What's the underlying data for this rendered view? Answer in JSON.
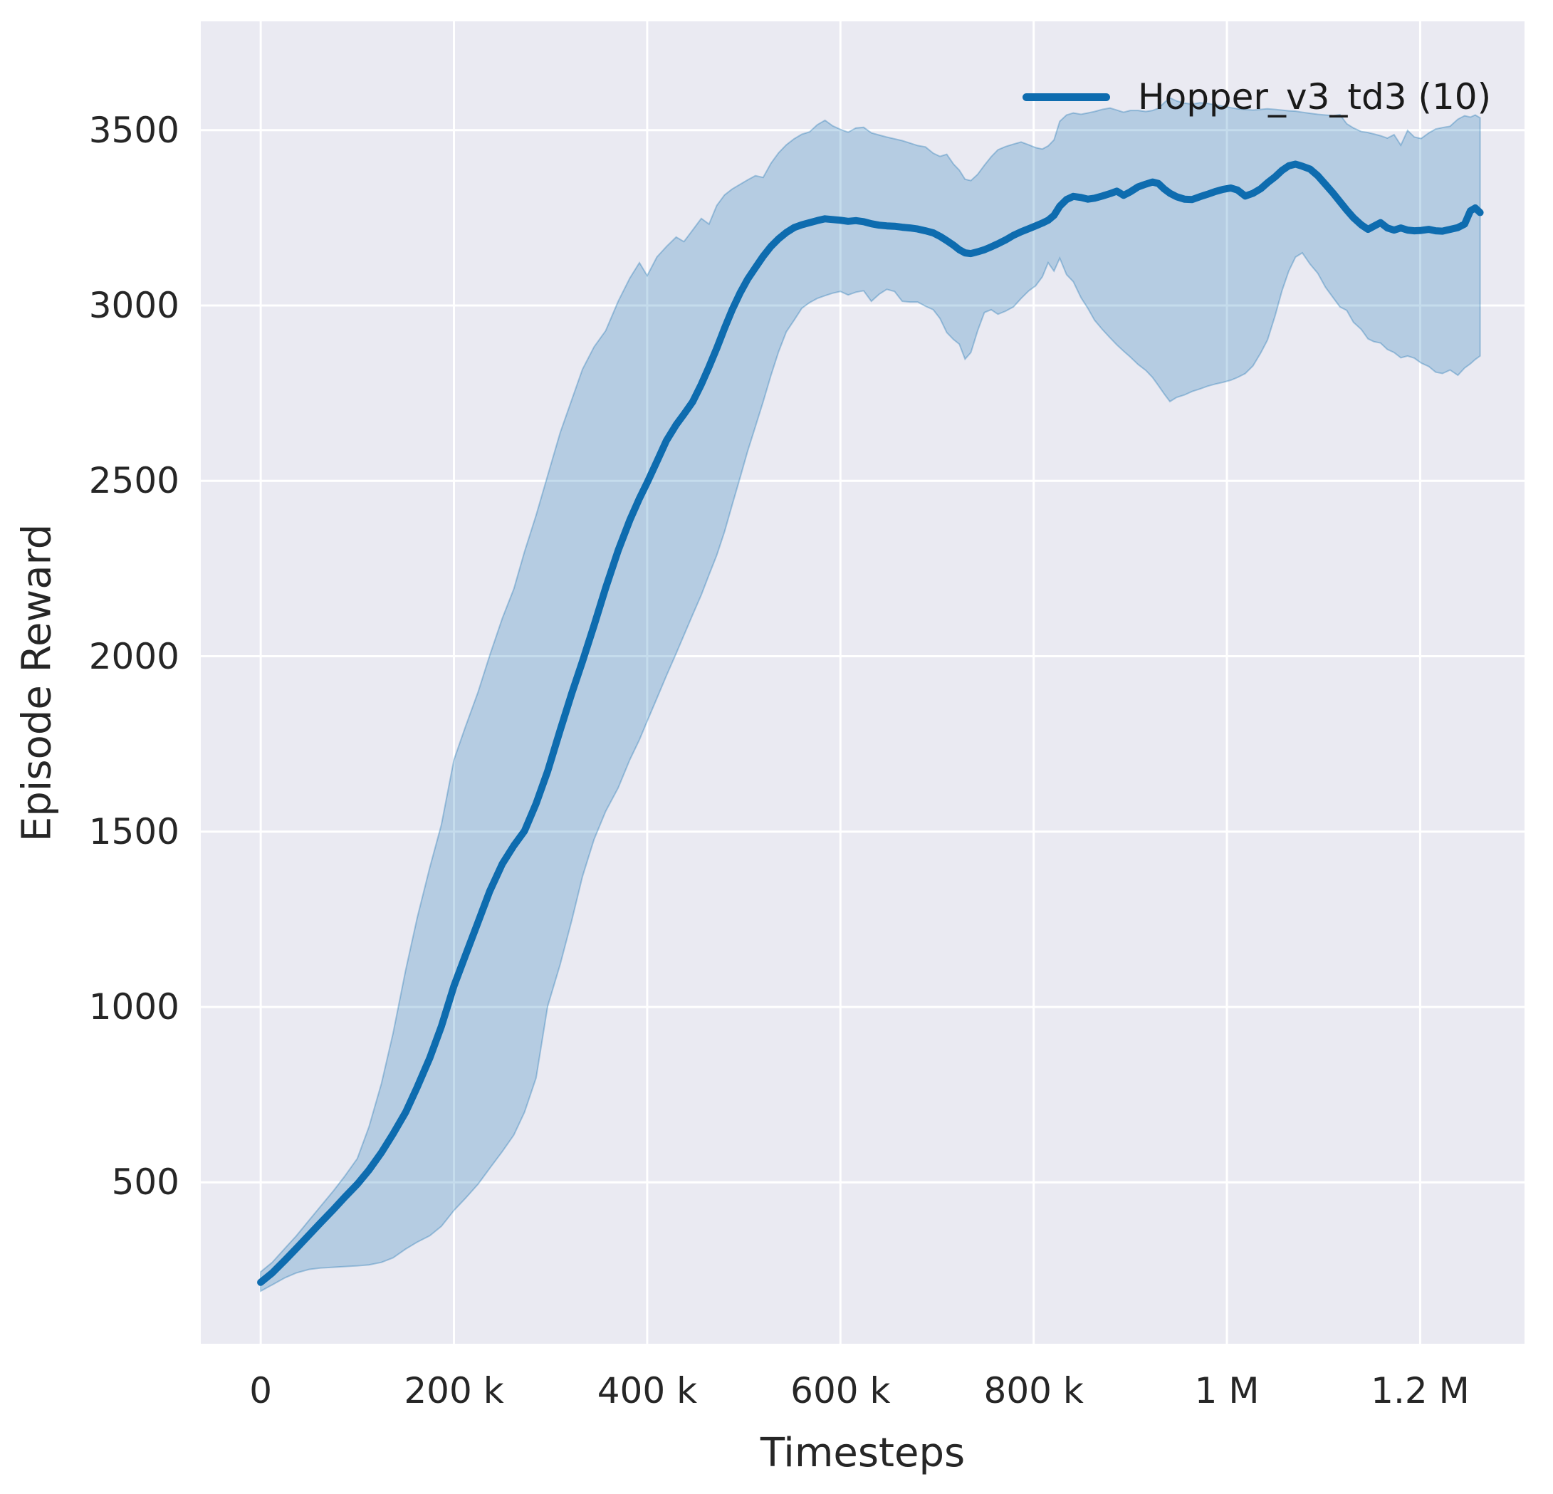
{
  "chart_data": {
    "type": "line",
    "title": "",
    "xlabel": "Timesteps",
    "ylabel": "Episode Reward",
    "grid": true,
    "legend_position": "upper right",
    "legend": [
      {
        "label": "Hopper_v3_td3 (10)"
      }
    ],
    "colors": {
      "line": "#0e6caf",
      "band_fill": "rgba(14,108,175,0.24)",
      "band_edge": "rgba(14,108,175,0.32)",
      "axes_background": "#eaeaf2",
      "gridline": "#ffffff",
      "text": "#262626"
    },
    "x_ticks": [
      {
        "value_k": 0,
        "label": "0"
      },
      {
        "value_k": 200,
        "label": "200 k"
      },
      {
        "value_k": 400,
        "label": "400 k"
      },
      {
        "value_k": 600,
        "label": "600 k"
      },
      {
        "value_k": 800,
        "label": "800 k"
      },
      {
        "value_k": 1000,
        "label": "1 M"
      },
      {
        "value_k": 1200,
        "label": "1.2 M"
      }
    ],
    "y_ticks": [
      {
        "value": 500,
        "label": "500"
      },
      {
        "value": 1000,
        "label": "1000"
      },
      {
        "value": 1500,
        "label": "1500"
      },
      {
        "value": 2000,
        "label": "2000"
      },
      {
        "value": 2500,
        "label": "2500"
      },
      {
        "value": 3000,
        "label": "3000"
      },
      {
        "value": 3500,
        "label": "3500"
      }
    ],
    "xlim_k": [
      -62,
      1308
    ],
    "ylim": [
      40,
      3810
    ],
    "series": [
      {
        "name": "Hopper_v3_td3 (10)",
        "x_k": [
          0,
          12,
          25,
          37,
          50,
          62,
          75,
          87,
          100,
          112,
          125,
          137,
          150,
          162,
          175,
          187,
          200,
          212,
          225,
          237,
          250,
          262,
          273,
          285,
          297,
          310,
          322,
          333,
          345,
          357,
          370,
          382,
          392,
          400,
          410,
          420,
          430,
          438,
          447,
          456,
          464,
          472,
          480,
          488,
          496,
          504,
          512,
          520,
          528,
          536,
          544,
          552,
          560,
          568,
          576,
          584,
          592,
          600,
          608,
          616,
          624,
          632,
          640,
          648,
          656,
          664,
          672,
          680,
          688,
          696,
          703,
          710,
          717,
          723,
          729,
          735,
          742,
          749,
          756,
          763,
          771,
          779,
          787,
          795,
          802,
          809,
          815,
          821,
          827,
          834,
          841,
          849,
          856,
          863,
          871,
          879,
          886,
          893,
          900,
          908,
          916,
          923,
          929,
          935,
          941,
          948,
          956,
          964,
          972,
          980,
          988,
          996,
          1004,
          1011,
          1019,
          1027,
          1035,
          1042,
          1050,
          1057,
          1064,
          1071,
          1078,
          1086,
          1094,
          1102,
          1110,
          1117,
          1124,
          1131,
          1139,
          1146,
          1152,
          1159,
          1166,
          1173,
          1180,
          1187,
          1194,
          1201,
          1209,
          1216,
          1223,
          1231,
          1239,
          1246,
          1252,
          1257,
          1262
        ],
        "mean": [
          215,
          242,
          278,
          312,
          350,
          385,
          422,
          458,
          495,
          535,
          585,
          638,
          700,
          772,
          855,
          945,
          1060,
          1148,
          1242,
          1330,
          1408,
          1460,
          1502,
          1580,
          1672,
          1790,
          1895,
          1985,
          2088,
          2195,
          2302,
          2388,
          2450,
          2495,
          2555,
          2615,
          2660,
          2690,
          2725,
          2775,
          2825,
          2878,
          2935,
          2988,
          3035,
          3075,
          3108,
          3140,
          3168,
          3190,
          3208,
          3222,
          3230,
          3236,
          3242,
          3247,
          3245,
          3243,
          3240,
          3242,
          3239,
          3233,
          3229,
          3227,
          3226,
          3223,
          3221,
          3218,
          3213,
          3207,
          3197,
          3185,
          3172,
          3159,
          3150,
          3148,
          3153,
          3159,
          3167,
          3176,
          3187,
          3200,
          3210,
          3219,
          3227,
          3235,
          3243,
          3257,
          3283,
          3302,
          3311,
          3308,
          3303,
          3306,
          3312,
          3319,
          3326,
          3314,
          3324,
          3338,
          3346,
          3352,
          3348,
          3332,
          3320,
          3310,
          3303,
          3302,
          3310,
          3317,
          3325,
          3331,
          3335,
          3329,
          3312,
          3320,
          3333,
          3350,
          3367,
          3385,
          3398,
          3403,
          3397,
          3389,
          3370,
          3345,
          3320,
          3296,
          3272,
          3250,
          3230,
          3217,
          3226,
          3236,
          3221,
          3215,
          3221,
          3215,
          3213,
          3214,
          3217,
          3213,
          3212,
          3217,
          3222,
          3232,
          3270,
          3278,
          3265
        ],
        "lower": [
          190,
          208,
          228,
          242,
          252,
          256,
          258,
          260,
          262,
          265,
          272,
          285,
          310,
          330,
          348,
          375,
          420,
          455,
          495,
          540,
          588,
          635,
          700,
          798,
          1002,
          1122,
          1248,
          1372,
          1478,
          1558,
          1625,
          1705,
          1762,
          1815,
          1880,
          1945,
          2008,
          2060,
          2118,
          2175,
          2232,
          2288,
          2355,
          2432,
          2508,
          2585,
          2655,
          2725,
          2800,
          2868,
          2925,
          2958,
          2992,
          3008,
          3020,
          3028,
          3035,
          3040,
          3030,
          3038,
          3042,
          3012,
          3032,
          3046,
          3040,
          3012,
          3010,
          3010,
          2998,
          2988,
          2963,
          2923,
          2903,
          2890,
          2847,
          2866,
          2928,
          2980,
          2988,
          2975,
          2984,
          2996,
          3020,
          3042,
          3056,
          3082,
          3122,
          3098,
          3135,
          3088,
          3068,
          3022,
          2992,
          2958,
          2932,
          2908,
          2888,
          2870,
          2853,
          2832,
          2815,
          2795,
          2772,
          2748,
          2726,
          2738,
          2745,
          2755,
          2762,
          2770,
          2776,
          2781,
          2787,
          2795,
          2806,
          2828,
          2865,
          2902,
          2972,
          3042,
          3098,
          3138,
          3150,
          3118,
          3092,
          3052,
          3022,
          2996,
          2986,
          2952,
          2932,
          2905,
          2897,
          2893,
          2875,
          2866,
          2851,
          2856,
          2850,
          2836,
          2826,
          2810,
          2806,
          2816,
          2801,
          2822,
          2834,
          2846,
          2856
        ],
        "upper": [
          245,
          272,
          312,
          348,
          392,
          432,
          475,
          518,
          568,
          658,
          782,
          925,
          1105,
          1255,
          1398,
          1520,
          1705,
          1800,
          1898,
          2002,
          2108,
          2192,
          2298,
          2402,
          2515,
          2638,
          2732,
          2818,
          2882,
          2928,
          3012,
          3078,
          3122,
          3085,
          3138,
          3168,
          3195,
          3182,
          3215,
          3248,
          3232,
          3285,
          3315,
          3332,
          3345,
          3358,
          3370,
          3365,
          3405,
          3435,
          3458,
          3475,
          3488,
          3495,
          3515,
          3528,
          3512,
          3502,
          3494,
          3506,
          3508,
          3492,
          3486,
          3480,
          3475,
          3470,
          3463,
          3456,
          3452,
          3434,
          3425,
          3431,
          3403,
          3386,
          3360,
          3356,
          3374,
          3400,
          3424,
          3444,
          3453,
          3460,
          3466,
          3458,
          3450,
          3446,
          3455,
          3472,
          3525,
          3543,
          3549,
          3545,
          3549,
          3553,
          3559,
          3563,
          3557,
          3551,
          3556,
          3556,
          3553,
          3556,
          3562,
          3578,
          3592,
          3583,
          3577,
          3574,
          3578,
          3576,
          3572,
          3568,
          3564,
          3561,
          3559,
          3557,
          3559,
          3561,
          3559,
          3557,
          3555,
          3554,
          3551,
          3548,
          3545,
          3543,
          3541,
          3544,
          3518,
          3506,
          3496,
          3493,
          3489,
          3484,
          3477,
          3487,
          3457,
          3499,
          3480,
          3476,
          3492,
          3503,
          3507,
          3511,
          3531,
          3541,
          3537,
          3543,
          3535
        ]
      }
    ]
  }
}
